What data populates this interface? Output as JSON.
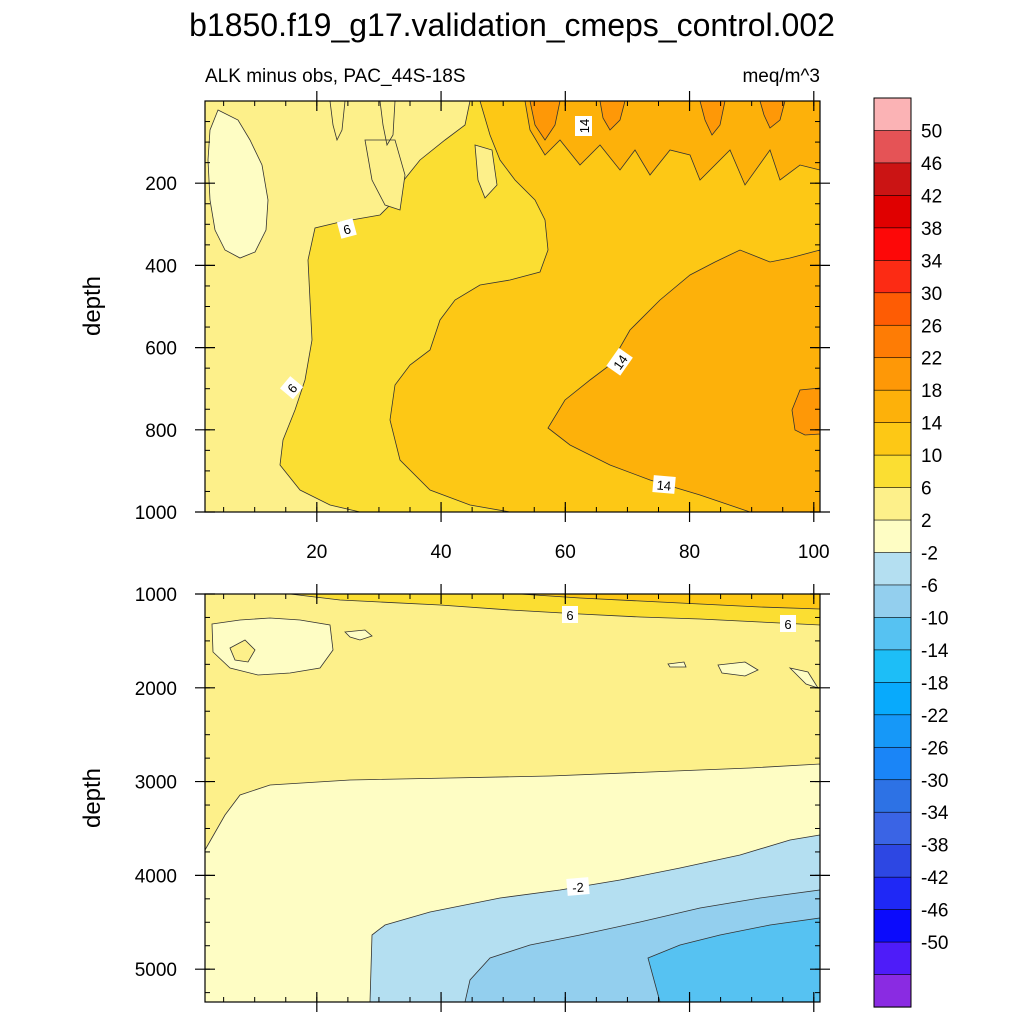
{
  "title": "b1850.f19_g17.validation_cmeps_control.002",
  "chart_data": {
    "type": "contour",
    "colorbar": {
      "levels": [
        "50",
        "46",
        "42",
        "38",
        "34",
        "30",
        "26",
        "22",
        "18",
        "14",
        "10",
        "6",
        "2",
        "-2",
        "-6",
        "-10",
        "-14",
        "-18",
        "-22",
        "-26",
        "-30",
        "-34",
        "-38",
        "-42",
        "-46",
        "-50"
      ],
      "colors": [
        "#fbb3b5",
        "#e55356",
        "#cb1414",
        "#e00000",
        "#fd0808",
        "#fc2b14",
        "#fe5c04",
        "#fe7c05",
        "#fe9807",
        "#fdb10a",
        "#fdc815",
        "#fbde32",
        "#fdf08a",
        "#fefdc4",
        "#b4dff1",
        "#93cfee",
        "#56c2f2",
        "#1dbef7",
        "#08aafc",
        "#1698f8",
        "#1a85f7",
        "#2d72e5",
        "#3a64e5",
        "#2d47e3",
        "#1f28f6",
        "#0b0bfc",
        "#4e1cf9",
        "#8a2be2"
      ]
    },
    "panels": [
      {
        "subtitle_left": "ALK minus obs, PAC_44S-18S",
        "subtitle_right": "meq/m^3",
        "ylabel": "depth",
        "ylim": [
          1000,
          0
        ],
        "xlim": [
          2,
          101
        ],
        "yticks": [
          "200",
          "400",
          "600",
          "800",
          "1000"
        ],
        "ytick_values": [
          200,
          400,
          600,
          800,
          1000
        ],
        "xticks": [
          "20",
          "40",
          "60",
          "80",
          "100"
        ],
        "xtick_values": [
          20,
          40,
          60,
          80,
          100
        ],
        "contour_labels": [
          "14",
          "6",
          "6",
          "14",
          "14"
        ]
      },
      {
        "ylabel": "depth",
        "ylim": [
          5350,
          1000
        ],
        "xlim": [
          2,
          101
        ],
        "yticks": [
          "1000",
          "2000",
          "3000",
          "4000",
          "5000"
        ],
        "ytick_values": [
          1000,
          2000,
          3000,
          4000,
          5000
        ],
        "xtick_values": [
          20,
          40,
          60,
          80,
          100
        ],
        "contour_labels": [
          "6",
          "6",
          "-2"
        ]
      }
    ]
  }
}
